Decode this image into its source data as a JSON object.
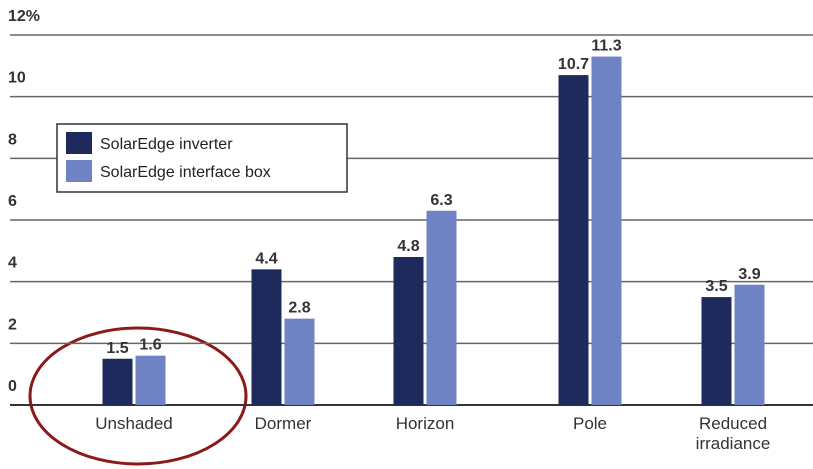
{
  "chart_data": {
    "type": "bar",
    "categories": [
      "Unshaded",
      "Dormer",
      "Horizon",
      "Pole",
      "Reduced irradiance"
    ],
    "series": [
      {
        "name": "SolarEdge inverter",
        "color": "#1f2a5c",
        "values": [
          1.5,
          4.4,
          4.8,
          10.7,
          3.5
        ]
      },
      {
        "name": "SolarEdge interface box",
        "color": "#6e82c4",
        "values": [
          1.6,
          2.8,
          6.3,
          11.3,
          3.9
        ]
      }
    ],
    "ylim": [
      0,
      12
    ],
    "yticks": [
      0,
      2,
      4,
      6,
      8,
      10,
      {
        "value": 12,
        "label": "12%"
      }
    ],
    "grid": true,
    "legend": "upper left"
  }
}
